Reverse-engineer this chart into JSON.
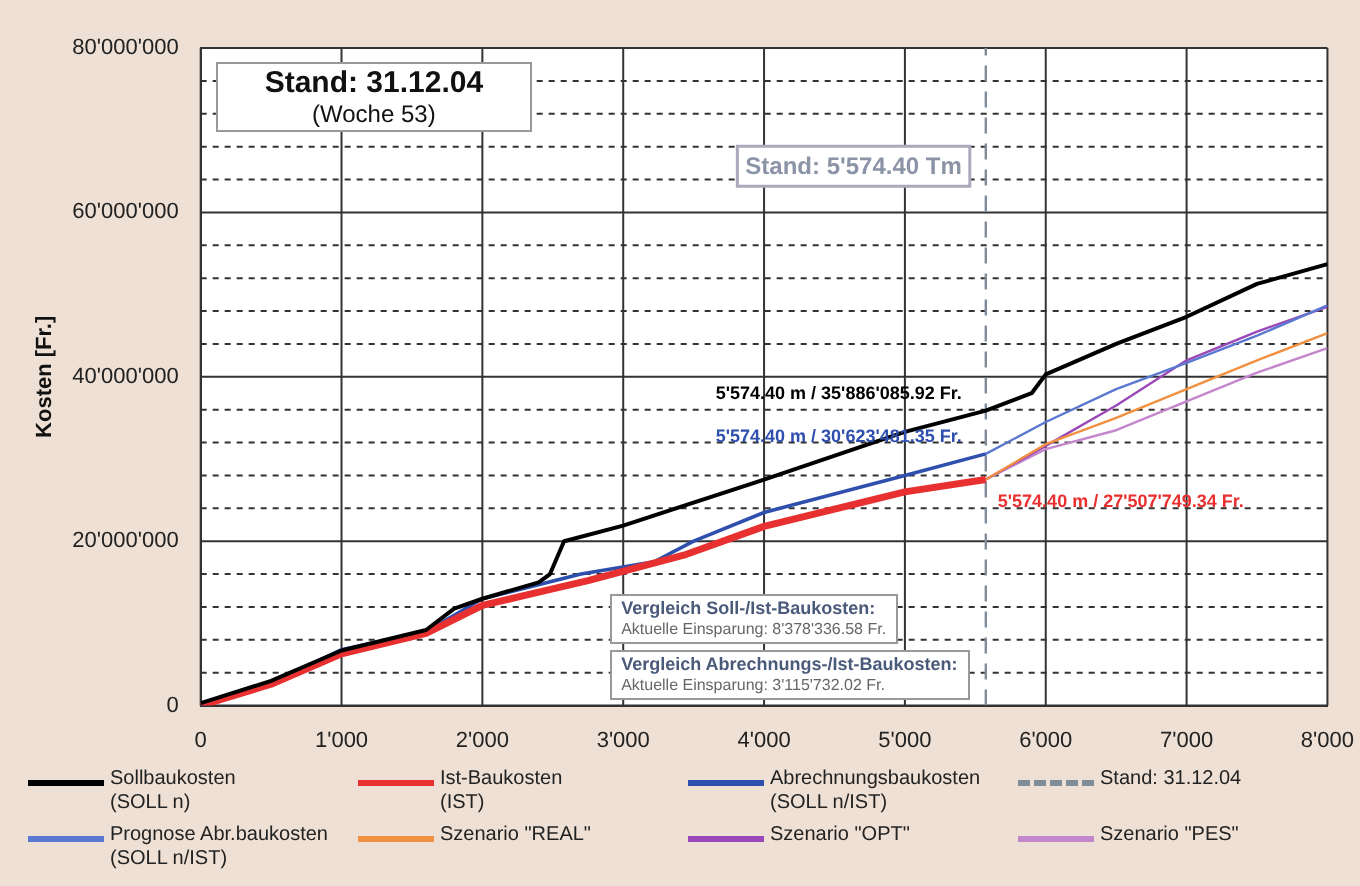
{
  "chart_data": {
    "type": "line",
    "ylabel": "Kosten [Fr.]",
    "xlim": [
      0,
      8000
    ],
    "ylim": [
      0,
      80000000
    ],
    "xticks": [
      0,
      {
        "value": 1000,
        "label": "1'000"
      },
      {
        "value": 2000,
        "label": "2'000"
      },
      {
        "value": 3000,
        "label": "3'000"
      },
      {
        "value": 4000,
        "label": "4'000"
      },
      {
        "value": 5000,
        "label": "5'000"
      },
      {
        "value": 6000,
        "label": "6'000"
      },
      {
        "value": 7000,
        "label": "7'000"
      },
      {
        "value": 8000,
        "label": "8'000"
      }
    ],
    "yticks": [
      0,
      {
        "value": 4000000,
        "label": null
      },
      {
        "value": 8000000,
        "label": null
      },
      {
        "value": 12000000,
        "label": null
      },
      {
        "value": 16000000,
        "label": null
      },
      {
        "value": 20000000,
        "label": "20'000'000"
      },
      {
        "value": 24000000,
        "label": null
      },
      {
        "value": 28000000,
        "label": null
      },
      {
        "value": 32000000,
        "label": null
      },
      {
        "value": 36000000,
        "label": null
      },
      {
        "value": 40000000,
        "label": "40'000'000"
      },
      {
        "value": 44000000,
        "label": null
      },
      {
        "value": 48000000,
        "label": null
      },
      {
        "value": 52000000,
        "label": null
      },
      {
        "value": 56000000,
        "label": null
      },
      {
        "value": 60000000,
        "label": "60'000'000"
      },
      {
        "value": 64000000,
        "label": null
      },
      {
        "value": 68000000,
        "label": null
      },
      {
        "value": 72000000,
        "label": null
      },
      {
        "value": 76000000,
        "label": null
      },
      {
        "value": 80000000,
        "label": "80'000'000"
      }
    ],
    "grid": true,
    "legend": "bottom",
    "marker": "none",
    "series": [
      {
        "name": "Sollbaukosten\n(SOLL n)",
        "color": "#000000",
        "x": [
          0,
          500,
          1000,
          1600,
          1800,
          2000,
          2400,
          2480,
          2580,
          3000,
          4000,
          5000,
          5574.4,
          5900,
          6000,
          6500,
          7000,
          7500,
          8000
        ],
        "values": [
          300000,
          3000000,
          6700000,
          9200000,
          11800000,
          13000000,
          15000000,
          16000000,
          20000000,
          21900000,
          27500000,
          33300000,
          35886085.92,
          38000000,
          40300000,
          44000000,
          47300000,
          51300000,
          53700000
        ]
      },
      {
        "name": "Ist-Baukosten\n(IST)",
        "color": "#e83030",
        "x": [
          0,
          500,
          1000,
          1600,
          1800,
          2000,
          2400,
          2750,
          3430,
          4000,
          5000,
          5574.4
        ],
        "values": [
          0,
          2600000,
          6300000,
          8800000,
          10500000,
          12200000,
          13800000,
          15200000,
          18300000,
          21800000,
          26000000,
          27507749.34
        ]
      },
      {
        "name": "Abrechnungsbaukosten\n(SOLL n/IST)",
        "color": "#2e4fae",
        "x": [
          0,
          500,
          1000,
          1600,
          1800,
          2000,
          2700,
          3220,
          3500,
          4000,
          5000,
          5574.4
        ],
        "values": [
          0,
          2700000,
          6800000,
          9000000,
          11000000,
          13000000,
          16000000,
          17500000,
          20000000,
          23500000,
          28000000,
          30623481.35
        ]
      },
      {
        "name": "Stand: 31.12.04",
        "color": "#7f8c99",
        "line_style": "dashed",
        "x": [
          5574.4,
          5574.4
        ],
        "values": [
          0,
          80000000
        ]
      },
      {
        "name": "Prognose Abr.baukosten\n(SOLL n/IST)",
        "color": "#5a78d0",
        "x": [
          5574.4,
          6000,
          6500,
          7000,
          7500,
          8000
        ],
        "values": [
          30623481.35,
          34500000,
          38500000,
          41700000,
          45000000,
          48700000
        ]
      },
      {
        "name": "Szenario \"REAL\"",
        "color": "#f09040",
        "x": [
          5574.4,
          6000,
          6500,
          7000,
          7500,
          8000
        ],
        "values": [
          27507749.34,
          31800000,
          35000000,
          38500000,
          42000000,
          45300000
        ]
      },
      {
        "name": "Szenario \"OPT\"",
        "color": "#9a48b8",
        "x": [
          5574.4,
          6000,
          6500,
          7000,
          7500,
          8000
        ],
        "values": [
          27507749.34,
          31600000,
          36500000,
          42000000,
          45500000,
          48500000
        ]
      },
      {
        "name": "Szenario \"PES\"",
        "color": "#c487cc",
        "x": [
          5574.4,
          6000,
          6500,
          7000,
          7500,
          8000
        ],
        "values": [
          27507749.34,
          31200000,
          33500000,
          37000000,
          40500000,
          43500000
        ]
      }
    ],
    "annotations": [
      "Stand: 31.12.04",
      "(Woche 53)",
      "Vergleich Soll-/Ist-Baukosten:",
      "Aktuelle Einsparung: 8'378'336.58 Fr.",
      "Vergleich Abrechnungs-/Ist-Baukosten:",
      "Aktuelle Einsparung: 3'115'732.02 Fr.",
      "Stand: 5'574.40 Tm",
      "5'574.40 m / 35'886'085.92 Fr.",
      "5'574.40 m / 30'623'481.35 Fr.",
      "5'574.40 m / 27'507'749.34 Fr."
    ]
  }
}
